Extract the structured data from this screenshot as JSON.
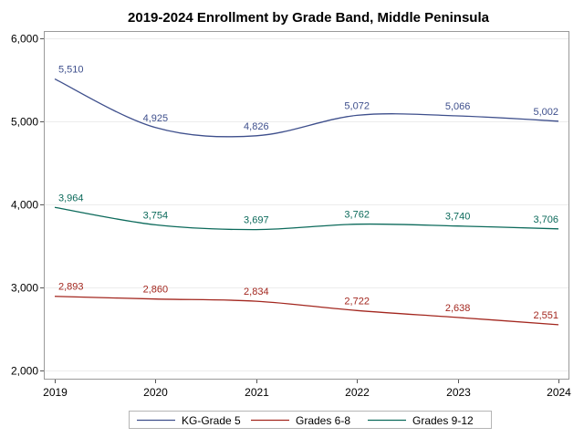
{
  "chart_data": {
    "type": "line",
    "title": "2019-2024 Enrollment by Grade Band, Middle Peninsula",
    "xlabel": "",
    "ylabel": "",
    "x": [
      2019,
      2020,
      2021,
      2022,
      2023,
      2024
    ],
    "x_tick_labels": [
      "2019",
      "2020",
      "2021",
      "2022",
      "2023",
      "2024"
    ],
    "ylim": [
      2000,
      6000
    ],
    "y_ticks": [
      2000,
      3000,
      4000,
      5000,
      6000
    ],
    "y_tick_labels": [
      "2,000",
      "3,000",
      "4,000",
      "5,000",
      "6,000"
    ],
    "grid": "horizontal",
    "legend_position": "bottom",
    "series": [
      {
        "name": "KG-Grade 5",
        "color": "#3e4f8c",
        "values": [
          5510,
          4925,
          4826,
          5072,
          5066,
          5002
        ],
        "labels": [
          "5,510",
          "4,925",
          "4,826",
          "5,072",
          "5,066",
          "5,002"
        ]
      },
      {
        "name": "Grades 6-8",
        "color": "#a3271f",
        "values": [
          2893,
          2860,
          2834,
          2722,
          2638,
          2551
        ],
        "labels": [
          "2,893",
          "2,860",
          "2,834",
          "2,722",
          "2,638",
          "2,551"
        ]
      },
      {
        "name": "Grades 9-12",
        "color": "#0c6a5b",
        "values": [
          3964,
          3754,
          3697,
          3762,
          3740,
          3706
        ],
        "labels": [
          "3,964",
          "3,754",
          "3,697",
          "3,762",
          "3,740",
          "3,706"
        ]
      }
    ]
  }
}
